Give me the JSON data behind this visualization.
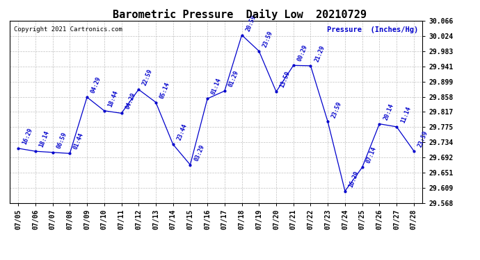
{
  "title": "Barometric Pressure  Daily Low  20210729",
  "ylabel": "Pressure  (Inches/Hg)",
  "copyright": "Copyright 2021 Cartronics.com",
  "background_color": "#ffffff",
  "line_color": "#0000cc",
  "text_color": "#0000cc",
  "grid_color": "#c0c0c0",
  "dates": [
    "07/05",
    "07/06",
    "07/07",
    "07/08",
    "07/09",
    "07/10",
    "07/11",
    "07/12",
    "07/13",
    "07/14",
    "07/15",
    "07/16",
    "07/17",
    "07/18",
    "07/19",
    "07/20",
    "07/21",
    "07/22",
    "07/23",
    "07/24",
    "07/25",
    "07/26",
    "07/27",
    "07/28"
  ],
  "values": [
    29.717,
    29.709,
    29.706,
    29.703,
    29.857,
    29.82,
    29.813,
    29.878,
    29.843,
    29.728,
    29.672,
    29.853,
    29.874,
    30.027,
    29.983,
    29.872,
    29.944,
    29.943,
    29.79,
    29.6,
    29.665,
    29.784,
    29.776,
    29.71
  ],
  "point_labels": [
    "16:29",
    "18:14",
    "06:59",
    "01:44",
    "04:29",
    "18:44",
    "04:29",
    "22:59",
    "05:14",
    "23:44",
    "03:29",
    "01:14",
    "01:29",
    "20:59",
    "23:59",
    "13:59",
    "00:29",
    "21:29",
    "23:59",
    "16:29",
    "07:14",
    "20:14",
    "11:14",
    "23:59"
  ],
  "ylim_min": 29.568,
  "ylim_max": 30.066,
  "ytick_values": [
    29.568,
    29.609,
    29.651,
    29.692,
    29.734,
    29.775,
    29.817,
    29.858,
    29.899,
    29.941,
    29.983,
    30.024,
    30.066
  ],
  "title_fontsize": 11,
  "label_fontsize": 7,
  "point_label_fontsize": 6,
  "copyright_fontsize": 6.5,
  "ylabel_fontsize": 7.5
}
